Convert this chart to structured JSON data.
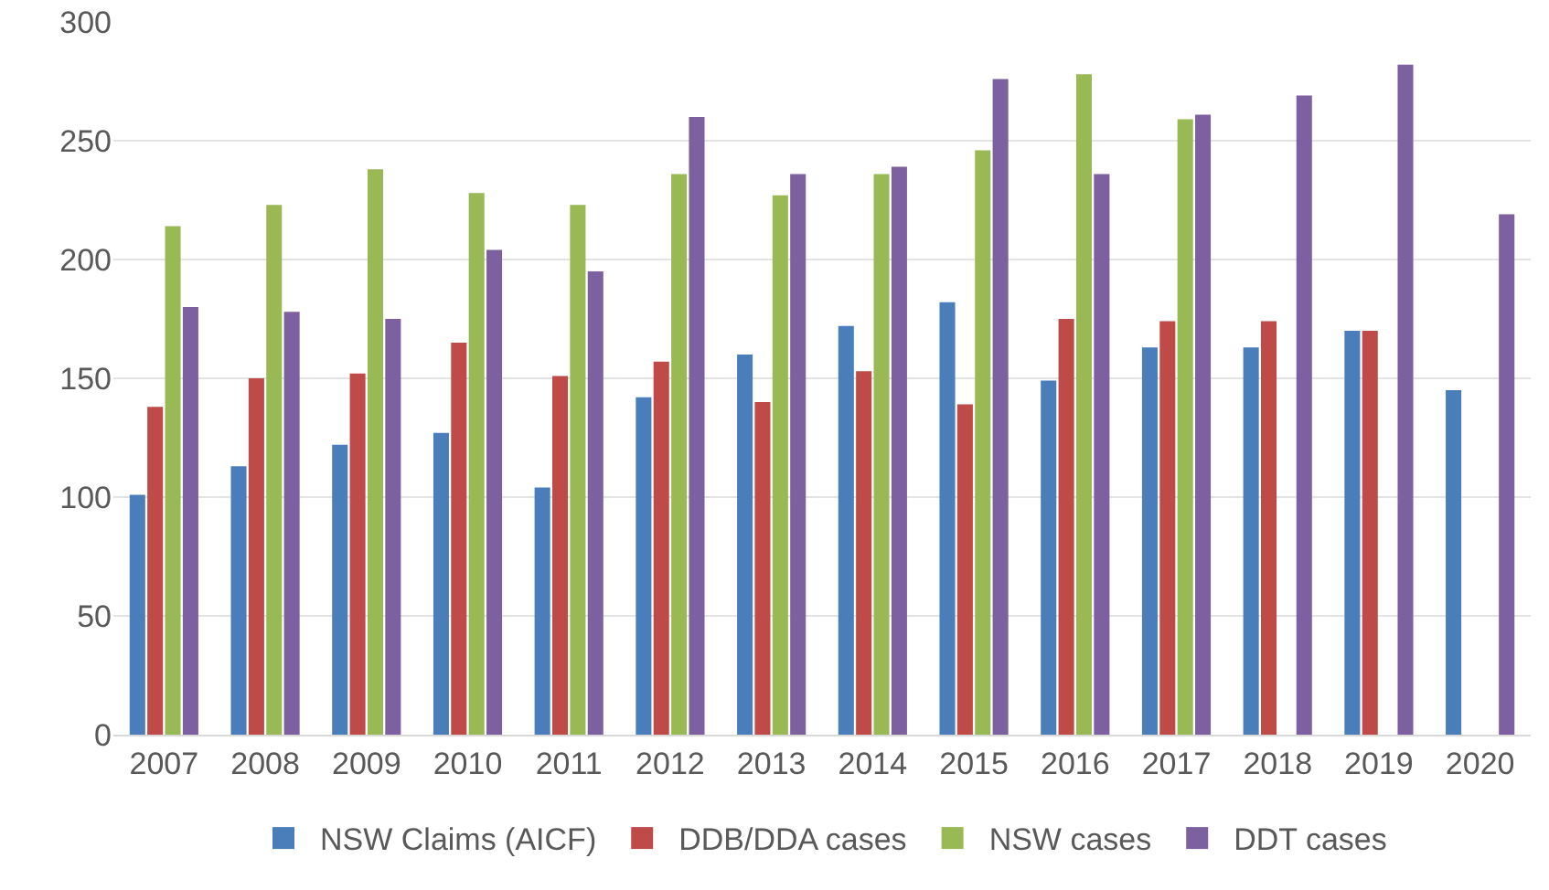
{
  "chart_data": {
    "type": "bar",
    "categories": [
      "2007",
      "2008",
      "2009",
      "2010",
      "2011",
      "2012",
      "2013",
      "2014",
      "2015",
      "2016",
      "2017",
      "2018",
      "2019",
      "2020"
    ],
    "series": [
      {
        "name": "NSW Claims (AICF)",
        "color": "#4a7ebb",
        "values": [
          101,
          113,
          122,
          127,
          104,
          142,
          160,
          172,
          182,
          149,
          163,
          163,
          170,
          145
        ]
      },
      {
        "name": "DDB/DDA cases",
        "color": "#be4b48",
        "values": [
          138,
          150,
          152,
          165,
          151,
          157,
          140,
          153,
          139,
          175,
          174,
          174,
          170,
          null
        ]
      },
      {
        "name": "NSW cases",
        "color": "#98b954",
        "values": [
          214,
          223,
          238,
          228,
          223,
          236,
          227,
          236,
          246,
          278,
          259,
          null,
          null,
          null
        ]
      },
      {
        "name": "DDT cases",
        "color": "#7d60a0",
        "values": [
          180,
          178,
          175,
          204,
          195,
          260,
          236,
          239,
          276,
          236,
          261,
          269,
          282,
          219
        ]
      }
    ],
    "ylim": [
      0,
      300
    ],
    "yticks": [
      0,
      50,
      100,
      150,
      200,
      250,
      300
    ],
    "grid": "y",
    "legend": "bottom"
  }
}
